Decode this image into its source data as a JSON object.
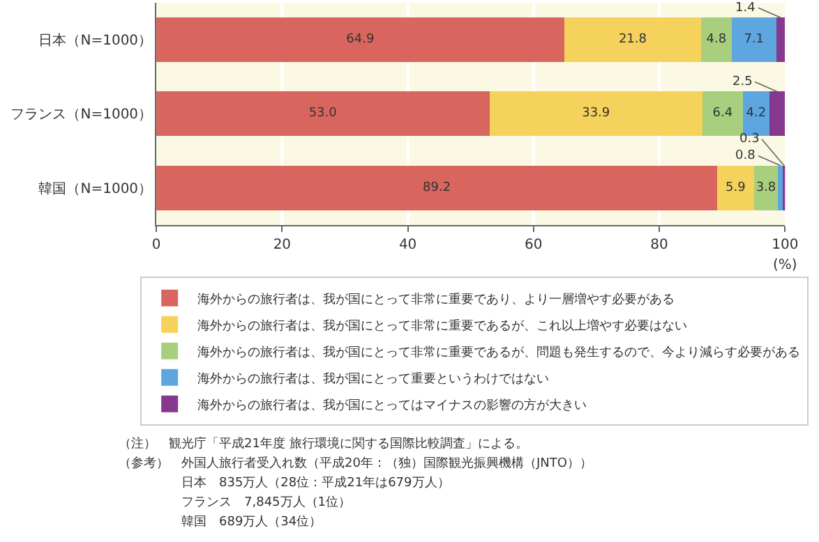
{
  "chart_data": {
    "type": "bar",
    "orientation": "horizontal",
    "stacked": true,
    "categories": [
      "日本（N=1000）",
      "フランス（N=1000）",
      "韓国（N=1000）"
    ],
    "series": [
      {
        "name": "海外からの旅行者は、我が国にとって非常に重要であり、より一層増やす必要がある",
        "color": "#d9655f",
        "values": [
          64.9,
          53.0,
          89.2
        ],
        "value_labels": [
          "64.9",
          "53.0",
          "89.2"
        ]
      },
      {
        "name": "海外からの旅行者は、我が国にとって非常に重要であるが、これ以上増やす必要はない",
        "color": "#f5d25c",
        "values": [
          21.8,
          33.9,
          5.9
        ],
        "value_labels": [
          "21.8",
          "33.9",
          "5.9"
        ]
      },
      {
        "name": "海外からの旅行者は、我が国にとって非常に重要であるが、問題も発生するので、今より減らす必要がある",
        "color": "#a8cf7e",
        "values": [
          4.8,
          6.4,
          3.8
        ],
        "value_labels": [
          "4.8",
          "6.4",
          "3.8"
        ]
      },
      {
        "name": "海外からの旅行者は、我が国にとって重要というわけではない",
        "color": "#5ea6e0",
        "values": [
          7.1,
          4.2,
          0.8
        ],
        "value_labels": [
          "7.1",
          "4.2",
          "0.8"
        ]
      },
      {
        "name": "海外からの旅行者は、我が国にとってはマイナスの影響の方が大きい",
        "color": "#86388f",
        "values": [
          1.4,
          2.5,
          0.3
        ],
        "value_labels": [
          "1.4",
          "2.5",
          "0.3"
        ]
      }
    ],
    "xlim": [
      0,
      100
    ],
    "xticks": [
      0,
      20,
      40,
      60,
      80,
      100
    ],
    "xlabel": "(%)",
    "grid": "x",
    "legend": "bottom",
    "annotations": [
      "（注）　観光庁「平成21年度 旅行環境に関する国際比較調査」による。",
      "（参考）　外国人旅行者受入れ数（平成20年：（独）国際観光振興機構（JNTO））",
      "　　　　　日本　835万人（28位：平成21年は679万人）",
      "　　　　　フランス　7,845万人（1位）",
      "　　　　　韓国　689万人（34位）"
    ]
  }
}
